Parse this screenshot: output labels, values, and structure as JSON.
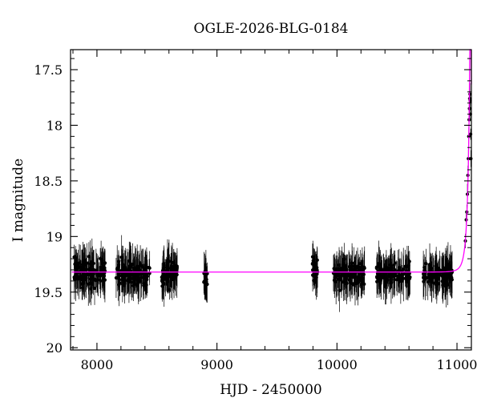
{
  "chart_data": {
    "type": "scatter",
    "title": "OGLE-2026-BLG-0184",
    "xlabel": "HJD - 2450000",
    "ylabel": "I magnitude",
    "xlim": [
      7780,
      11120
    ],
    "ylim": [
      20.02,
      17.32
    ],
    "y_inverted": true,
    "x_ticks": [
      8000,
      9000,
      10000,
      11000
    ],
    "x_tick_labels": [
      "8000",
      "9000",
      "10000",
      "11000"
    ],
    "y_ticks": [
      17.5,
      18,
      18.5,
      19,
      19.5,
      20
    ],
    "y_tick_labels": [
      "17.5",
      "18",
      "18.5",
      "19",
      "19.5",
      "20"
    ],
    "grid": false,
    "legend": "none",
    "colors": {
      "points": "#000000",
      "model": "#ff00ff"
    },
    "seasons": [
      {
        "x_start": 7810,
        "x_end": 8070,
        "mean": 19.32,
        "spread": 0.14,
        "n": 150
      },
      {
        "x_start": 8160,
        "x_end": 8440,
        "mean": 19.33,
        "spread": 0.12,
        "n": 140
      },
      {
        "x_start": 8540,
        "x_end": 8670,
        "mean": 19.33,
        "spread": 0.12,
        "n": 85
      },
      {
        "x_start": 8890,
        "x_end": 8920,
        "mean": 19.38,
        "spread": 0.12,
        "n": 22
      },
      {
        "x_start": 9790,
        "x_end": 9840,
        "mean": 19.28,
        "spread": 0.12,
        "n": 30
      },
      {
        "x_start": 9970,
        "x_end": 10230,
        "mean": 19.34,
        "spread": 0.12,
        "n": 130
      },
      {
        "x_start": 10330,
        "x_end": 10610,
        "mean": 19.33,
        "spread": 0.11,
        "n": 125
      },
      {
        "x_start": 10720,
        "x_end": 10960,
        "mean": 19.34,
        "spread": 0.1,
        "n": 125
      }
    ],
    "event_points": [
      {
        "x": 11070,
        "y": 19.04
      },
      {
        "x": 11077,
        "y": 18.85
      },
      {
        "x": 11082,
        "y": 18.78
      },
      {
        "x": 11087,
        "y": 18.62
      },
      {
        "x": 11091,
        "y": 18.45
      },
      {
        "x": 11095,
        "y": 18.3
      },
      {
        "x": 11098,
        "y": 18.1
      },
      {
        "x": 11101,
        "y": 17.95
      },
      {
        "x": 11104,
        "y": 17.85
      },
      {
        "x": 11106,
        "y": 17.76
      },
      {
        "x": 11108,
        "y": 17.72
      },
      {
        "x": 11110,
        "y": 17.78
      },
      {
        "x": 11112,
        "y": 17.9
      },
      {
        "x": 11114,
        "y": 18.08
      },
      {
        "x": 11116,
        "y": 18.3
      }
    ],
    "model": {
      "baseline": 19.32,
      "t0": 11112,
      "u0": 0.08,
      "tE": 40,
      "x_start": 7790,
      "x_end": 11120
    }
  }
}
